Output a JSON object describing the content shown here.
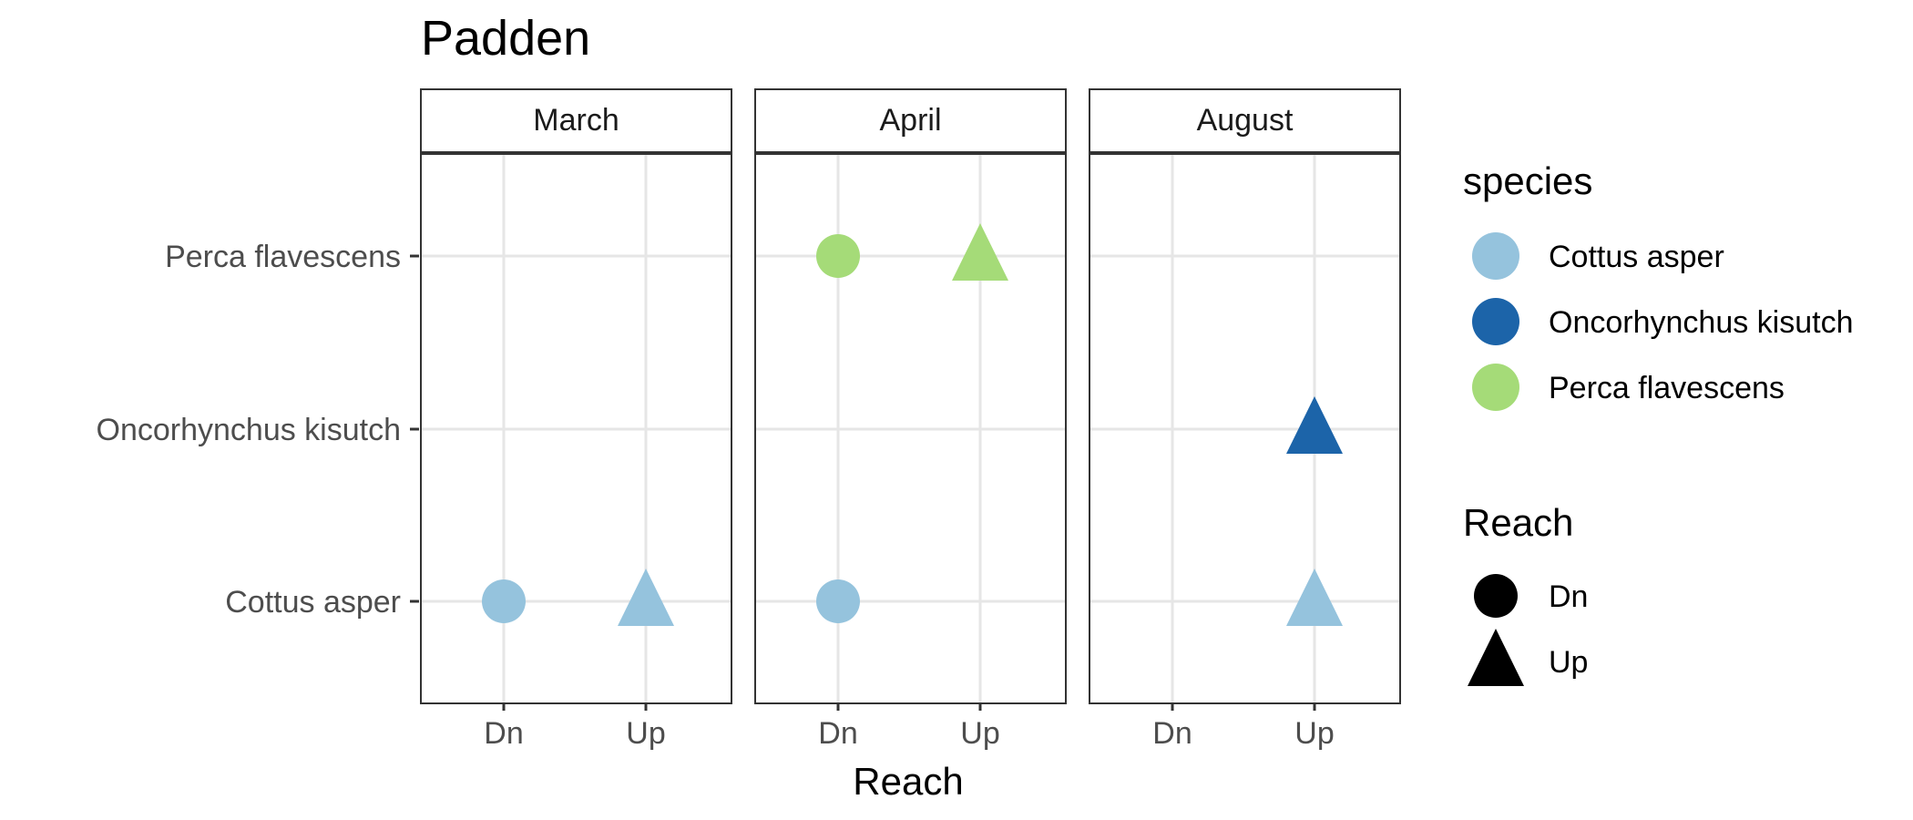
{
  "chart_data": {
    "type": "scatter",
    "title": "Padden",
    "xlabel": "Reach",
    "ylabel": "",
    "facets": [
      "March",
      "April",
      "August"
    ],
    "x_categories": [
      "Dn",
      "Up"
    ],
    "y_categories": [
      "Cottus asper",
      "Oncorhynchus kisutch",
      "Perca flavescens"
    ],
    "grid": true,
    "legend_position": "right",
    "legends": [
      {
        "title": "species",
        "kind": "color",
        "entries": [
          {
            "label": "Cottus asper",
            "color": "#95c3dd"
          },
          {
            "label": "Oncorhynchus kisutch",
            "color": "#1c64a9"
          },
          {
            "label": "Perca flavescens",
            "color": "#a5db78"
          }
        ]
      },
      {
        "title": "Reach",
        "kind": "shape",
        "entries": [
          {
            "label": "Dn",
            "shape": "circle"
          },
          {
            "label": "Up",
            "shape": "triangle"
          }
        ]
      }
    ],
    "points": [
      {
        "facet": "March",
        "reach": "Dn",
        "species": "Cottus asper"
      },
      {
        "facet": "March",
        "reach": "Up",
        "species": "Cottus asper"
      },
      {
        "facet": "April",
        "reach": "Dn",
        "species": "Perca flavescens"
      },
      {
        "facet": "April",
        "reach": "Up",
        "species": "Perca flavescens"
      },
      {
        "facet": "April",
        "reach": "Dn",
        "species": "Cottus asper"
      },
      {
        "facet": "August",
        "reach": "Up",
        "species": "Oncorhynchus kisutch"
      },
      {
        "facet": "August",
        "reach": "Up",
        "species": "Cottus asper"
      }
    ]
  }
}
